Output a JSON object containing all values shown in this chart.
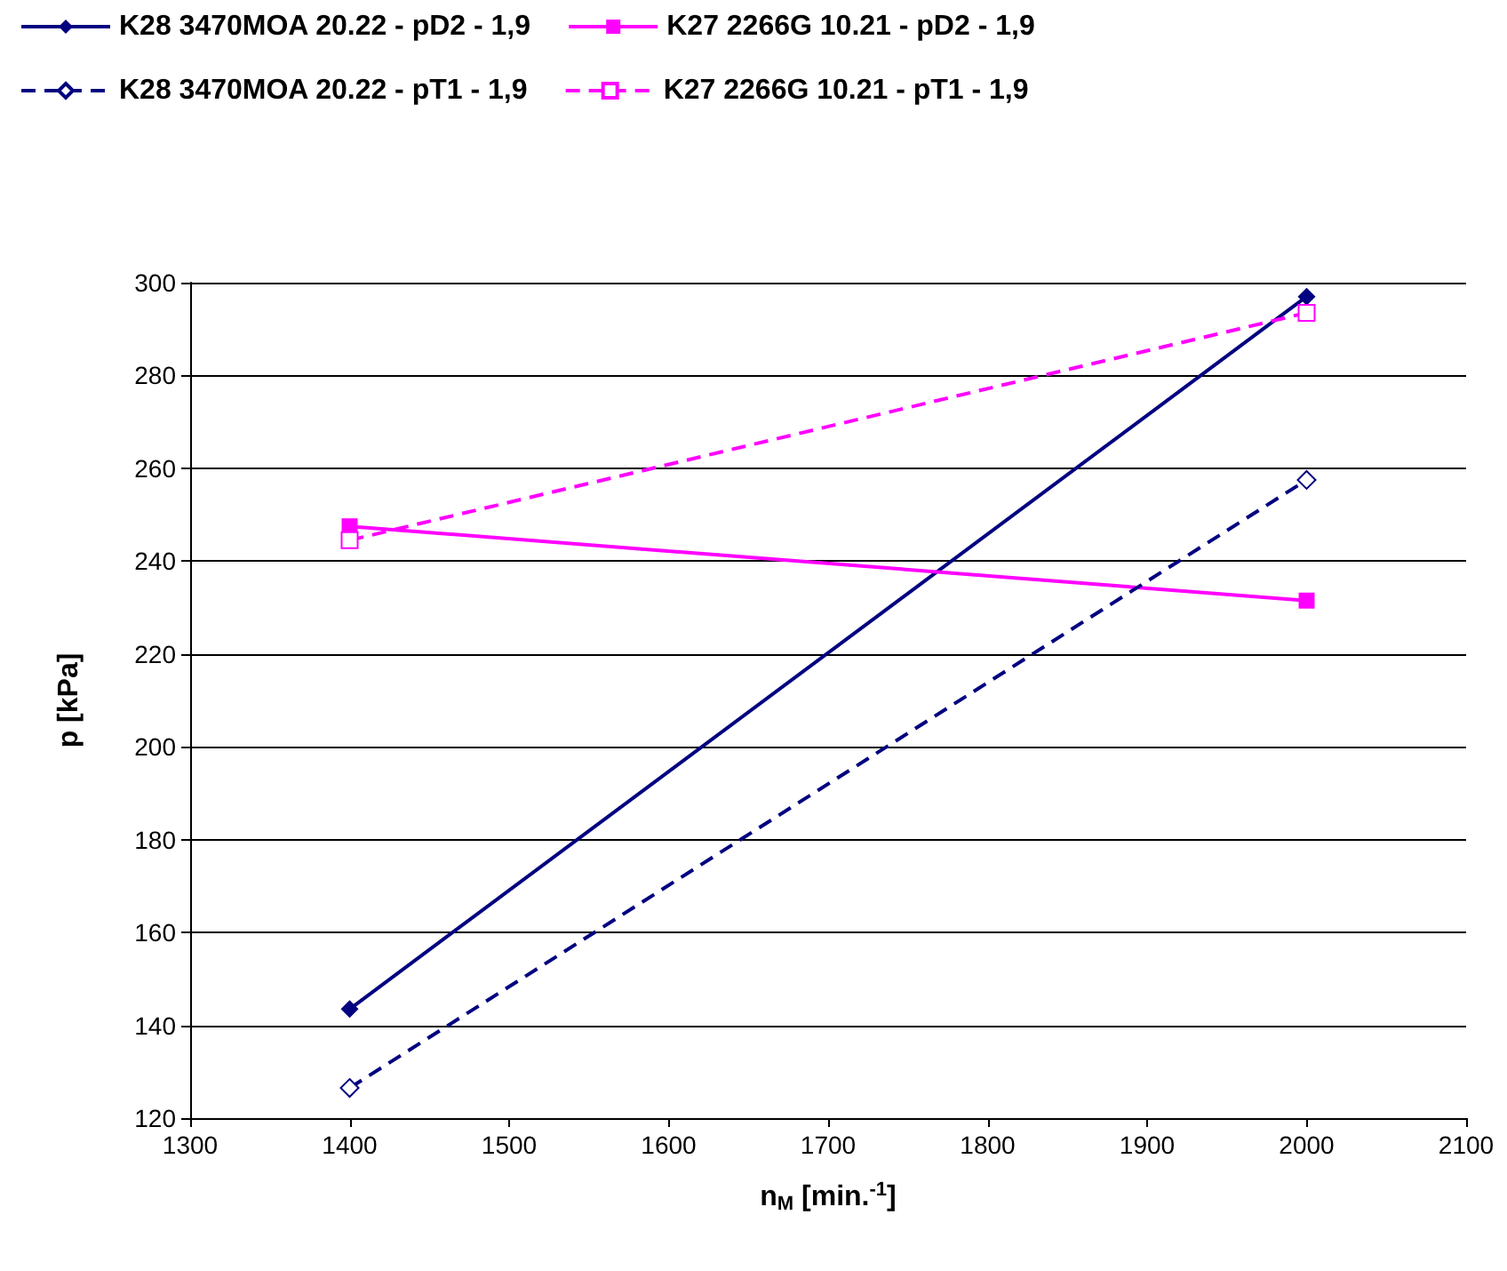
{
  "chart_data": {
    "type": "line",
    "xlabel": "n$_{M}$ [min.$^{-1}$]",
    "ylabel": "p [kPa]",
    "x": [
      1400,
      2000
    ],
    "series": [
      {
        "name": "K28 3470MOA 20.22 - pD2 - 1,9",
        "color": "#000080",
        "values": [
          143.5,
          297
        ],
        "marker": "diamond",
        "line_style": "solid"
      },
      {
        "name": "K27 2266G 10.21 - pD2 - 1,9",
        "color": "#ff00ff",
        "values": [
          247.5,
          231.5
        ],
        "marker": "square",
        "line_style": "solid"
      },
      {
        "name": "K28 3470MOA 20.22 - pT1 - 1,9",
        "color": "#000080",
        "values": [
          126.5,
          257.5
        ],
        "marker": "diamond",
        "line_style": "dashed"
      },
      {
        "name": "K27 2266G 10.21 - pT1 - 1,9",
        "color": "#ff00ff",
        "values": [
          244.5,
          293.5
        ],
        "marker": "square",
        "line_style": "dashed"
      }
    ],
    "xlim": [
      1300,
      2100
    ],
    "xticks": [
      1300,
      1400,
      1500,
      1600,
      1700,
      1800,
      1900,
      2000,
      2100
    ],
    "ylim": [
      120,
      300
    ],
    "yticks": [
      120,
      140,
      160,
      180,
      200,
      220,
      240,
      260,
      280,
      300
    ],
    "grid": "y",
    "legend": "top"
  }
}
